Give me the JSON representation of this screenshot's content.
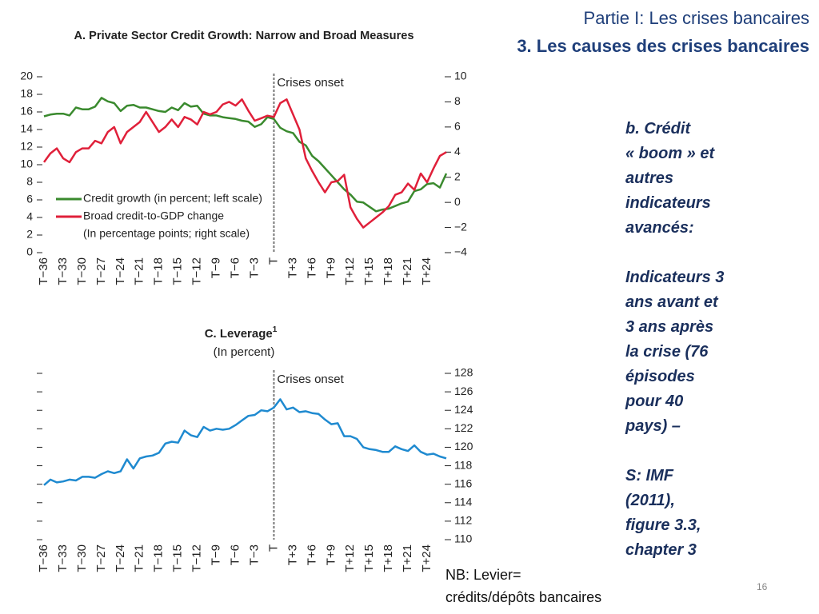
{
  "header": {
    "line1": "Partie I: Les crises bancaires",
    "line2": "3. Les causes des crises bancaires"
  },
  "side_text": [
    [
      "b. Crédit",
      "« boom » et",
      "autres",
      "indicateurs",
      "avancés:"
    ],
    [
      "Indicateurs 3",
      "ans avant et",
      "3 ans après",
      "la crise (76",
      "épisodes",
      "pour 40",
      "pays) –"
    ],
    [
      "S: IMF",
      "(2011),",
      "figure 3.3,",
      "chapter 3"
    ]
  ],
  "note": [
    "NB: Levier=",
    "crédits/dépôts bancaires"
  ],
  "page_number": "16",
  "chart_data": [
    {
      "type": "line",
      "title": "A. Private Sector Credit Growth: Narrow and Broad Measures",
      "categories": [
        "T−36",
        null,
        null,
        "T−33",
        null,
        null,
        "T−30",
        null,
        null,
        "T−27",
        null,
        null,
        "T−24",
        null,
        null,
        "T−21",
        null,
        null,
        "T−18",
        null,
        null,
        "T−15",
        null,
        null,
        "T−12",
        null,
        null,
        "T−9",
        null,
        null,
        "T−6",
        null,
        null,
        "T−3",
        null,
        null,
        "T",
        null,
        null,
        "T+3",
        null,
        null,
        "T+6",
        null,
        null,
        "T+9",
        null,
        null,
        "T+12",
        null,
        null,
        "T+15",
        null,
        null,
        "T+18",
        null,
        null,
        "T+21",
        null,
        null,
        "T+24",
        null,
        null,
        null
      ],
      "series": [
        {
          "name": "Credit growth (in percent; left scale)",
          "color": "#3a8a2e",
          "values": [
            15.5,
            15.7,
            15.8,
            15.8,
            15.6,
            16.5,
            16.3,
            16.3,
            16.6,
            17.6,
            17.2,
            17.0,
            16.1,
            16.7,
            16.8,
            16.5,
            16.5,
            16.3,
            16.1,
            16.0,
            16.5,
            16.2,
            17.0,
            16.6,
            16.7,
            15.8,
            15.6,
            15.6,
            15.4,
            15.3,
            15.2,
            15.0,
            14.9,
            14.3,
            14.6,
            15.4,
            15.2,
            14.2,
            13.8,
            13.6,
            12.6,
            12.2,
            11.0,
            10.4,
            9.6,
            8.8,
            8.0,
            7.2,
            6.6,
            5.8,
            5.7,
            5.2,
            4.7,
            4.9,
            5.0,
            5.3,
            5.6,
            5.8,
            7.0,
            7.2,
            7.8,
            7.9,
            7.4,
            9.0
          ]
        },
        {
          "name": "Broad credit-to-GDP change",
          "color": "#e0203a",
          "axis": "y2",
          "values": [
            3.2,
            3.9,
            4.3,
            3.5,
            3.2,
            4.0,
            4.3,
            4.3,
            4.9,
            4.7,
            5.6,
            6.0,
            4.7,
            5.6,
            6.0,
            6.4,
            7.2,
            6.4,
            5.6,
            6.0,
            6.6,
            6.0,
            6.8,
            6.6,
            6.2,
            7.2,
            7.0,
            7.2,
            7.8,
            8.0,
            7.7,
            8.2,
            7.3,
            6.5,
            6.7,
            6.9,
            6.8,
            7.9,
            8.2,
            7.0,
            5.8,
            3.5,
            2.5,
            1.6,
            0.8,
            1.6,
            1.7,
            2.2,
            -0.4,
            -1.3,
            -2.0,
            -1.6,
            -1.2,
            -0.8,
            -0.3,
            0.6,
            0.8,
            1.5,
            1.0,
            2.3,
            1.6,
            2.7,
            3.7,
            4.0
          ]
        }
      ],
      "legend_note": "(In percentage points; right scale)",
      "annotations": [
        {
          "text": "Crises onset",
          "at": "T"
        }
      ],
      "ylim": [
        0,
        20
      ],
      "yticks": [
        0,
        2,
        4,
        6,
        8,
        10,
        12,
        14,
        16,
        18,
        20
      ],
      "y2lim": [
        -4,
        10
      ],
      "y2ticks": [
        {
          "value": -4,
          "label": "−4"
        },
        {
          "value": -2,
          "label": "−2"
        },
        0,
        2,
        4,
        6,
        8,
        10
      ]
    },
    {
      "type": "line",
      "title": "C. Leverage",
      "title_superscript": "1",
      "subtitle": "(In percent)",
      "categories": [
        "T−36",
        null,
        null,
        "T−33",
        null,
        null,
        "T−30",
        null,
        null,
        "T−27",
        null,
        null,
        "T−24",
        null,
        null,
        "T−21",
        null,
        null,
        "T−18",
        null,
        null,
        "T−15",
        null,
        null,
        "T−12",
        null,
        null,
        "T−9",
        null,
        null,
        "T−6",
        null,
        null,
        "T−3",
        null,
        null,
        "T",
        null,
        null,
        "T+3",
        null,
        null,
        "T+6",
        null,
        null,
        "T+9",
        null,
        null,
        "T+12",
        null,
        null,
        "T+15",
        null,
        null,
        "T+18",
        null,
        null,
        "T+21",
        null,
        null,
        "T+24",
        null,
        null,
        null
      ],
      "series": [
        {
          "color": "#1f8ad0",
          "values": [
            115.9,
            116.5,
            116.2,
            116.3,
            116.5,
            116.4,
            116.8,
            116.8,
            116.7,
            117.1,
            117.4,
            117.2,
            117.4,
            118.7,
            117.7,
            118.8,
            119.0,
            119.1,
            119.4,
            120.4,
            120.6,
            120.5,
            121.8,
            121.3,
            121.1,
            122.2,
            121.8,
            122.0,
            121.9,
            122.0,
            122.4,
            122.9,
            123.4,
            123.5,
            124.0,
            123.9,
            124.3,
            125.2,
            124.1,
            124.3,
            123.8,
            123.9,
            123.7,
            123.6,
            123.0,
            122.5,
            122.6,
            121.2,
            121.2,
            120.9,
            120.0,
            119.8,
            119.7,
            119.5,
            119.5,
            120.1,
            119.8,
            119.6,
            120.2,
            119.5,
            119.2,
            119.3,
            119.0,
            118.8
          ]
        }
      ],
      "annotations": [
        {
          "text": "Crises onset",
          "at": "T"
        }
      ],
      "ylim": [
        110,
        128
      ],
      "yticks": [
        110,
        112,
        114,
        116,
        118,
        120,
        122,
        124,
        126,
        128
      ],
      "tick_labels_side": "right"
    }
  ]
}
